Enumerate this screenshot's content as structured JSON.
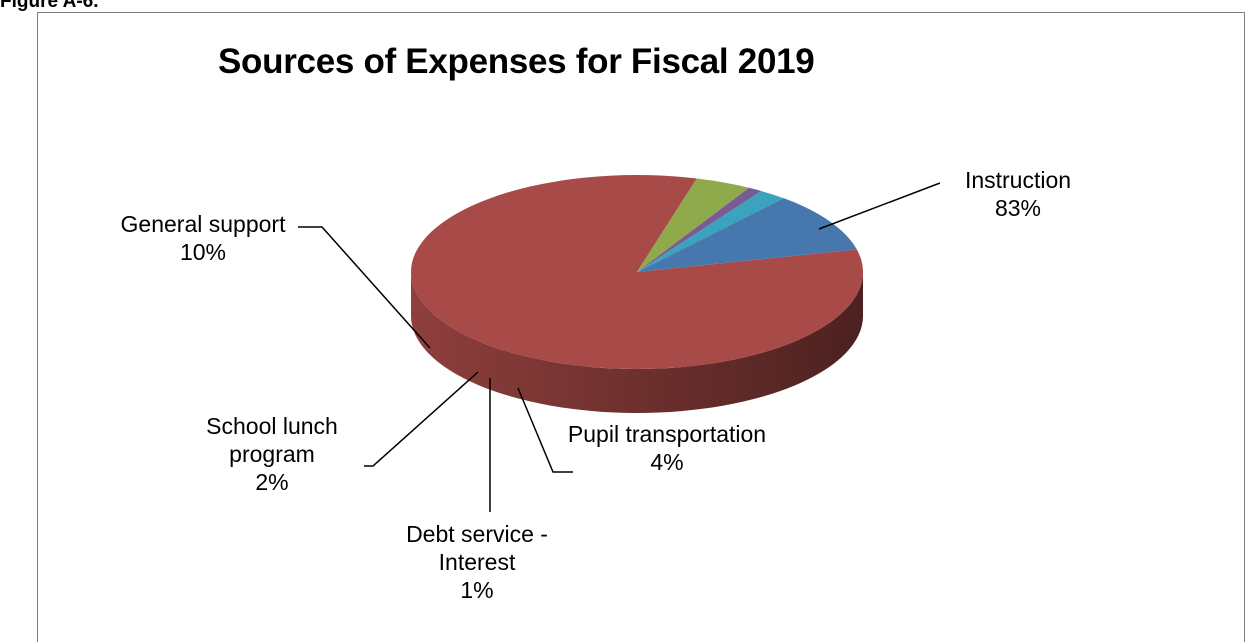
{
  "figure_label": "Figure A-6.",
  "chart_data": {
    "type": "pie",
    "title": "Sources of Expenses for Fiscal 2019",
    "slices": [
      {
        "label": "Instruction",
        "value": 83,
        "value_label": "83%",
        "color": "#a84a47"
      },
      {
        "label": "Pupil transportation",
        "value": 4,
        "value_label": "4%",
        "color": "#8eaa4b"
      },
      {
        "label": "Debt service - Interest",
        "value": 1,
        "value_label": "1%",
        "color": "#7a5a94"
      },
      {
        "label": "School lunch program",
        "value": 2,
        "value_label": "2%",
        "color": "#3ba3bd"
      },
      {
        "label": "General support",
        "value": 10,
        "value_label": "10%",
        "color": "#4677ad"
      }
    ],
    "style": "3d-pie",
    "legend": "none"
  }
}
